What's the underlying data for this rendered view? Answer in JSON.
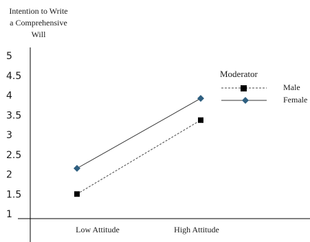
{
  "chart_data": {
    "type": "line",
    "title": "",
    "ylabel_lines": [
      "Intention to Write",
      "a Comprehensive",
      "Will"
    ],
    "xlabel": "",
    "categories": [
      "Low Attitude",
      "High Attitude"
    ],
    "ylim": [
      1,
      5
    ],
    "yticks": [
      "1",
      "1.5",
      "2",
      "2.5",
      "3",
      "3.5",
      "4",
      "4.5",
      "5"
    ],
    "grid": false,
    "legend": {
      "title": "Moderator",
      "placement": "right"
    },
    "series": [
      {
        "name": "Male",
        "values": [
          1.5,
          3.37
        ],
        "color": "#000000",
        "marker": "square",
        "line_style": "dashed"
      },
      {
        "name": "Female",
        "values": [
          2.15,
          3.92
        ],
        "color": "#2e5f80",
        "marker": "diamond",
        "line_style": "solid"
      }
    ]
  }
}
